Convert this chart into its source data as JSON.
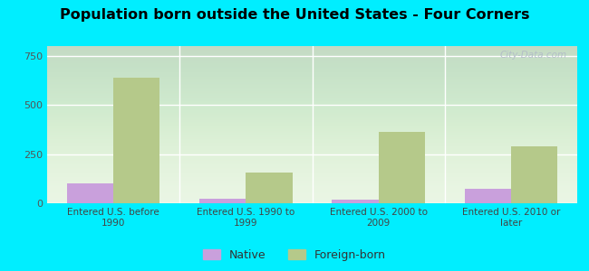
{
  "title": "Population born outside the United States - Four Corners",
  "categories": [
    "Entered U.S. before\n1990",
    "Entered U.S. 1990 to\n1999",
    "Entered U.S. 2000 to\n2009",
    "Entered U.S. 2010 or\nlater"
  ],
  "native_values": [
    100,
    22,
    18,
    75
  ],
  "foreign_born_values": [
    640,
    155,
    365,
    290
  ],
  "native_color": "#c9a0dc",
  "foreign_born_color": "#b5c98a",
  "plot_bg_top": "#e8f5e0",
  "plot_bg_bottom": "#f5fff5",
  "outer_background": "#00eeff",
  "ylim": [
    0,
    800
  ],
  "yticks": [
    0,
    250,
    500,
    750
  ],
  "title_fontsize": 12,
  "bar_width": 0.35,
  "watermark": "City-Data.com"
}
